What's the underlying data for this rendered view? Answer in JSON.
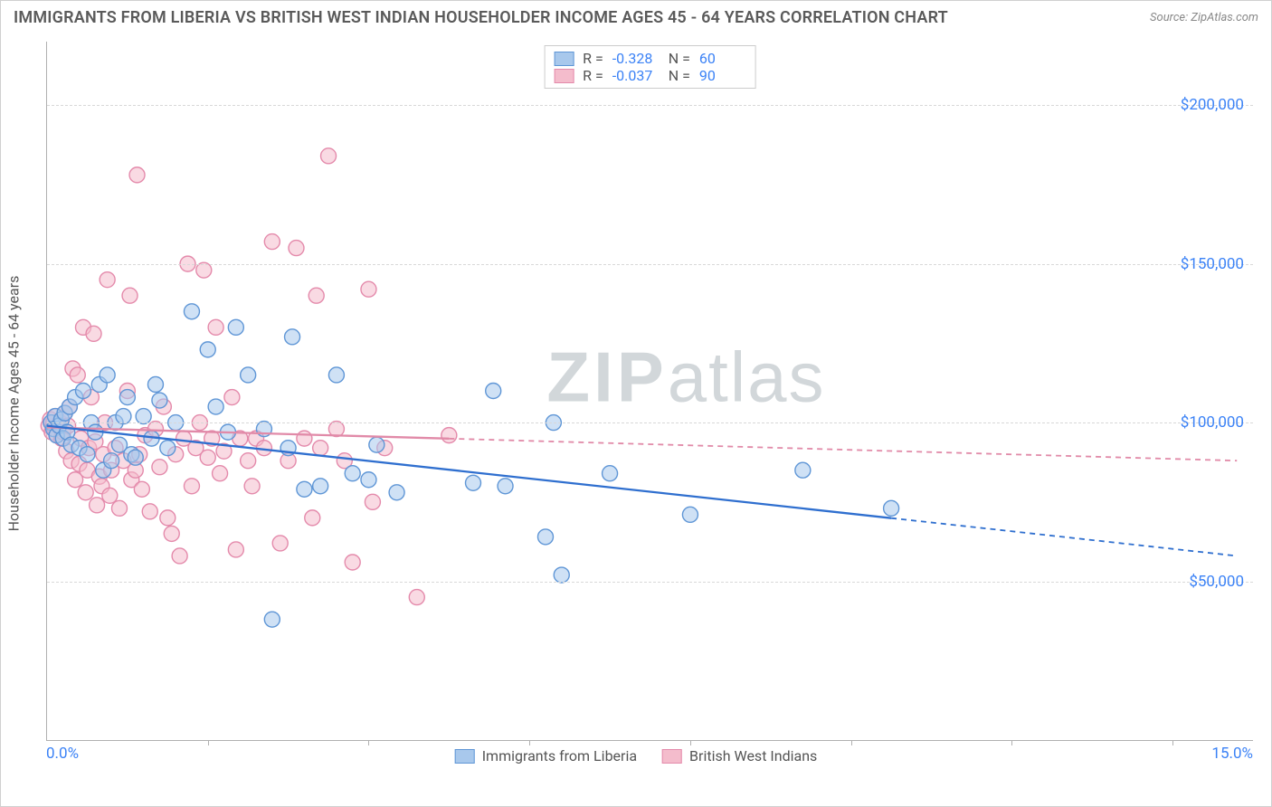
{
  "title": "IMMIGRANTS FROM LIBERIA VS BRITISH WEST INDIAN HOUSEHOLDER INCOME AGES 45 - 64 YEARS CORRELATION CHART",
  "source": "Source: ZipAtlas.com",
  "watermark_zip": "ZIP",
  "watermark_atlas": "atlas",
  "chart": {
    "type": "scatter",
    "y_axis_label": "Householder Income Ages 45 - 64 years",
    "xlim": [
      0.0,
      15.0
    ],
    "ylim": [
      0,
      220000
    ],
    "x_tick_label_min": "0.0%",
    "x_tick_label_max": "15.0%",
    "y_ticks": [
      50000,
      100000,
      150000,
      200000
    ],
    "y_tick_labels": [
      "$50,000",
      "$100,000",
      "$150,000",
      "$200,000"
    ],
    "x_tick_marks": [
      2,
      4,
      6,
      8,
      10,
      12,
      14
    ],
    "background_color": "#ffffff",
    "grid_color": "#d8d8d8",
    "axis_color": "#b0b0b0",
    "label_color": "#555555",
    "tick_value_color": "#3b82f6",
    "marker_radius": 8.5,
    "marker_opacity": 0.55,
    "series": [
      {
        "name": "Immigrants from Liberia",
        "fill_color": "#a8c8ec",
        "stroke_color": "#5f96d6",
        "line_color": "#2f6fcf",
        "R": "-0.328",
        "N": "60",
        "trend": {
          "x1": 0.0,
          "y1": 99000,
          "x2": 14.8,
          "y2": 58000
        },
        "solid_x_max": 10.5,
        "points": [
          [
            0.05,
            100000
          ],
          [
            0.08,
            98000
          ],
          [
            0.1,
            102000
          ],
          [
            0.12,
            96000
          ],
          [
            0.15,
            99000
          ],
          [
            0.18,
            101000
          ],
          [
            0.2,
            95000
          ],
          [
            0.22,
            103000
          ],
          [
            0.25,
            97000
          ],
          [
            0.28,
            105000
          ],
          [
            0.3,
            93000
          ],
          [
            0.35,
            108000
          ],
          [
            0.4,
            92000
          ],
          [
            0.45,
            110000
          ],
          [
            0.5,
            90000
          ],
          [
            0.55,
            100000
          ],
          [
            0.6,
            97000
          ],
          [
            0.65,
            112000
          ],
          [
            0.7,
            85000
          ],
          [
            0.75,
            115000
          ],
          [
            0.8,
            88000
          ],
          [
            0.85,
            100000
          ],
          [
            0.9,
            93000
          ],
          [
            0.95,
            102000
          ],
          [
            1.0,
            108000
          ],
          [
            1.05,
            90000
          ],
          [
            1.1,
            89000
          ],
          [
            1.2,
            102000
          ],
          [
            1.3,
            95000
          ],
          [
            1.35,
            112000
          ],
          [
            1.4,
            107000
          ],
          [
            1.5,
            92000
          ],
          [
            1.6,
            100000
          ],
          [
            1.8,
            135000
          ],
          [
            2.0,
            123000
          ],
          [
            2.1,
            105000
          ],
          [
            2.25,
            97000
          ],
          [
            2.35,
            130000
          ],
          [
            2.5,
            115000
          ],
          [
            2.7,
            98000
          ],
          [
            2.8,
            38000
          ],
          [
            3.0,
            92000
          ],
          [
            3.05,
            127000
          ],
          [
            3.2,
            79000
          ],
          [
            3.4,
            80000
          ],
          [
            3.6,
            115000
          ],
          [
            3.8,
            84000
          ],
          [
            4.0,
            82000
          ],
          [
            4.1,
            93000
          ],
          [
            4.35,
            78000
          ],
          [
            5.3,
            81000
          ],
          [
            5.55,
            110000
          ],
          [
            5.7,
            80000
          ],
          [
            6.2,
            64000
          ],
          [
            6.4,
            52000
          ],
          [
            6.3,
            100000
          ],
          [
            7.0,
            84000
          ],
          [
            8.0,
            71000
          ],
          [
            9.4,
            85000
          ],
          [
            10.5,
            73000
          ]
        ]
      },
      {
        "name": "British West Indians",
        "fill_color": "#f4bccc",
        "stroke_color": "#e48aab",
        "line_color": "#e18aa8",
        "R": "-0.037",
        "N": "90",
        "trend": {
          "x1": 0.0,
          "y1": 98500,
          "x2": 14.8,
          "y2": 88000
        },
        "solid_x_max": 5.0,
        "points": [
          [
            0.02,
            99000
          ],
          [
            0.04,
            101000
          ],
          [
            0.06,
            97000
          ],
          [
            0.08,
            100000
          ],
          [
            0.1,
            98000
          ],
          [
            0.11,
            102000
          ],
          [
            0.12,
            96000
          ],
          [
            0.14,
            99000
          ],
          [
            0.16,
            100000
          ],
          [
            0.18,
            95000
          ],
          [
            0.2,
            97000
          ],
          [
            0.22,
            103000
          ],
          [
            0.24,
            91000
          ],
          [
            0.26,
            99000
          ],
          [
            0.28,
            105000
          ],
          [
            0.3,
            88000
          ],
          [
            0.32,
            117000
          ],
          [
            0.35,
            82000
          ],
          [
            0.38,
            115000
          ],
          [
            0.4,
            87000
          ],
          [
            0.42,
            95000
          ],
          [
            0.45,
            130000
          ],
          [
            0.48,
            78000
          ],
          [
            0.5,
            85000
          ],
          [
            0.52,
            92000
          ],
          [
            0.55,
            108000
          ],
          [
            0.58,
            128000
          ],
          [
            0.6,
            94000
          ],
          [
            0.62,
            74000
          ],
          [
            0.65,
            83000
          ],
          [
            0.68,
            80000
          ],
          [
            0.7,
            90000
          ],
          [
            0.72,
            100000
          ],
          [
            0.75,
            145000
          ],
          [
            0.78,
            77000
          ],
          [
            0.8,
            85000
          ],
          [
            0.85,
            92000
          ],
          [
            0.9,
            73000
          ],
          [
            0.95,
            88000
          ],
          [
            1.0,
            110000
          ],
          [
            1.03,
            140000
          ],
          [
            1.05,
            82000
          ],
          [
            1.1,
            85000
          ],
          [
            1.12,
            178000
          ],
          [
            1.15,
            90000
          ],
          [
            1.18,
            79000
          ],
          [
            1.22,
            96000
          ],
          [
            1.28,
            72000
          ],
          [
            1.35,
            98000
          ],
          [
            1.4,
            86000
          ],
          [
            1.45,
            105000
          ],
          [
            1.5,
            70000
          ],
          [
            1.55,
            65000
          ],
          [
            1.6,
            90000
          ],
          [
            1.65,
            58000
          ],
          [
            1.7,
            95000
          ],
          [
            1.75,
            150000
          ],
          [
            1.8,
            80000
          ],
          [
            1.85,
            92000
          ],
          [
            1.9,
            100000
          ],
          [
            1.95,
            148000
          ],
          [
            2.0,
            89000
          ],
          [
            2.05,
            95000
          ],
          [
            2.1,
            130000
          ],
          [
            2.15,
            84000
          ],
          [
            2.2,
            91000
          ],
          [
            2.3,
            108000
          ],
          [
            2.35,
            60000
          ],
          [
            2.4,
            95000
          ],
          [
            2.5,
            88000
          ],
          [
            2.55,
            80000
          ],
          [
            2.6,
            95000
          ],
          [
            2.7,
            92000
          ],
          [
            2.8,
            157000
          ],
          [
            2.9,
            62000
          ],
          [
            3.0,
            88000
          ],
          [
            3.1,
            155000
          ],
          [
            3.2,
            95000
          ],
          [
            3.3,
            70000
          ],
          [
            3.35,
            140000
          ],
          [
            3.4,
            92000
          ],
          [
            3.5,
            184000
          ],
          [
            3.6,
            98000
          ],
          [
            3.7,
            88000
          ],
          [
            3.8,
            56000
          ],
          [
            4.0,
            142000
          ],
          [
            4.05,
            75000
          ],
          [
            4.2,
            92000
          ],
          [
            4.6,
            45000
          ],
          [
            5.0,
            96000
          ]
        ]
      }
    ]
  },
  "legend_top_labels": {
    "R": "R =",
    "N": "N ="
  },
  "legend_bottom": [
    "Immigrants from Liberia",
    "British West Indians"
  ]
}
